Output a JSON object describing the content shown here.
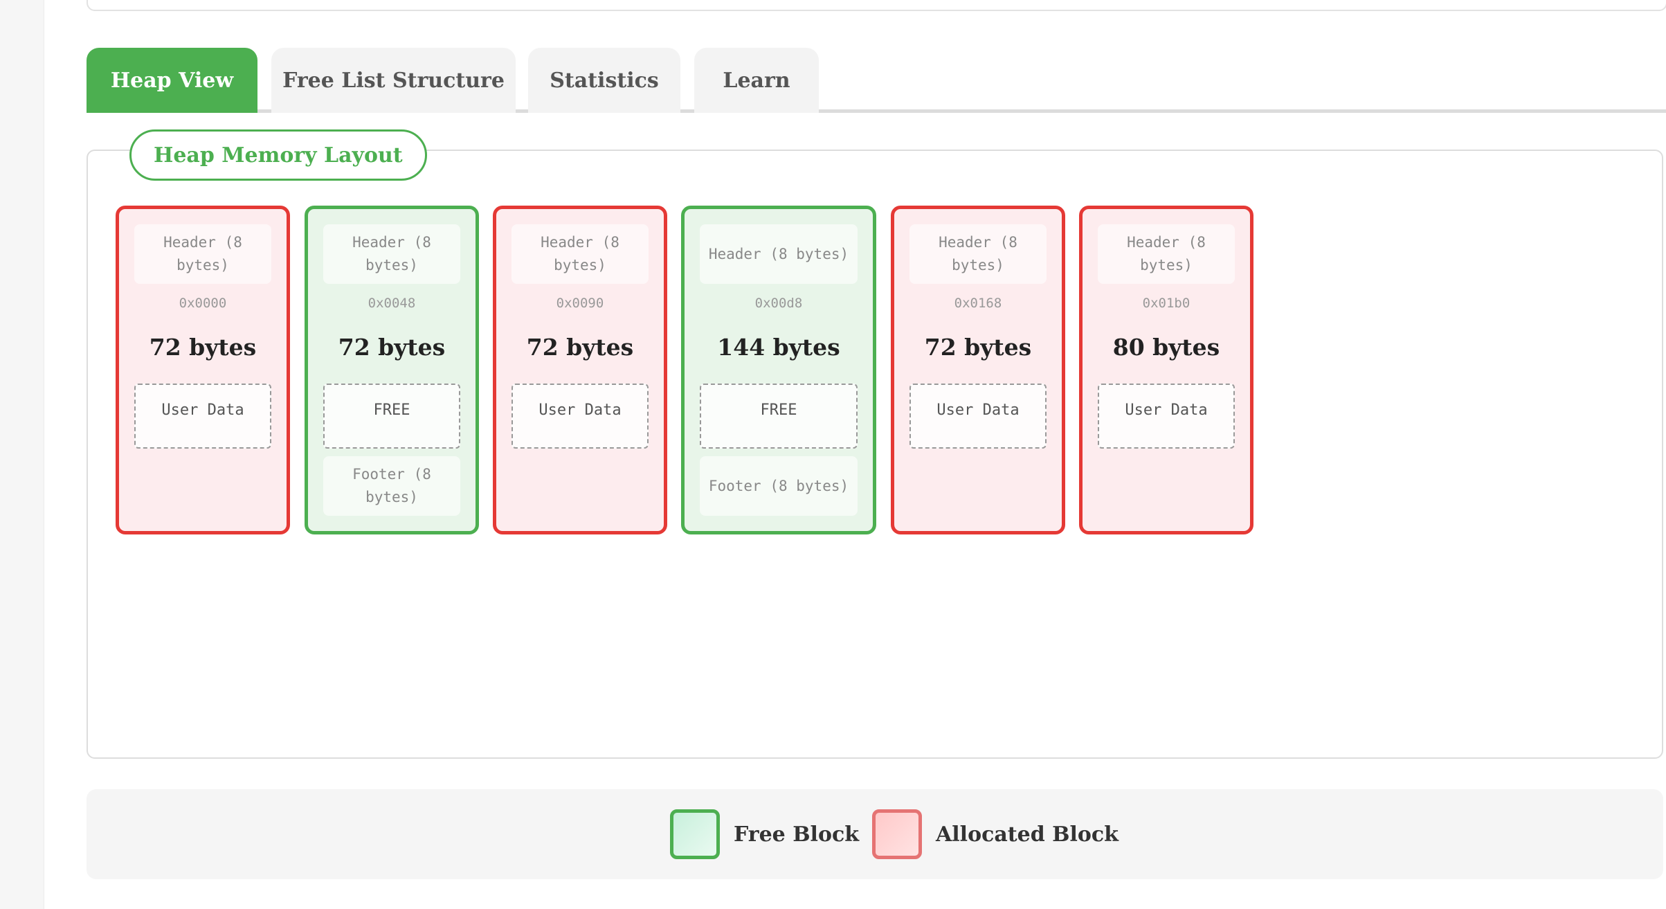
{
  "tabs": [
    {
      "label": "Heap View",
      "active": true
    },
    {
      "label": "Free List Structure",
      "active": false
    },
    {
      "label": "Statistics",
      "active": false
    },
    {
      "label": "Learn",
      "active": false
    }
  ],
  "layout": {
    "title": "Heap Memory Layout",
    "blocks": [
      {
        "state": "allocated",
        "header": "Header (8 bytes)",
        "address": "0x0000",
        "size": "72 bytes",
        "data": "User Data"
      },
      {
        "state": "free",
        "header": "Header (8 bytes)",
        "address": "0x0048",
        "size": "72 bytes",
        "data": "FREE",
        "footer": "Footer (8 bytes)"
      },
      {
        "state": "allocated",
        "header": "Header (8 bytes)",
        "address": "0x0090",
        "size": "72 bytes",
        "data": "User Data"
      },
      {
        "state": "free",
        "header": "Header (8 bytes)",
        "address": "0x00d8",
        "size": "144 bytes",
        "data": "FREE",
        "footer": "Footer (8 bytes)"
      },
      {
        "state": "allocated",
        "header": "Header (8 bytes)",
        "address": "0x0168",
        "size": "72 bytes",
        "data": "User Data"
      },
      {
        "state": "allocated",
        "header": "Header (8 bytes)",
        "address": "0x01b0",
        "size": "80 bytes",
        "data": "User Data"
      }
    ]
  },
  "legend": {
    "free_label": "Free Block",
    "allocated_label": "Allocated Block"
  },
  "colors": {
    "free": "#4caf50",
    "allocated": "#e53935",
    "free_bg": "#e8f5e9",
    "allocated_bg": "#fdecee"
  }
}
